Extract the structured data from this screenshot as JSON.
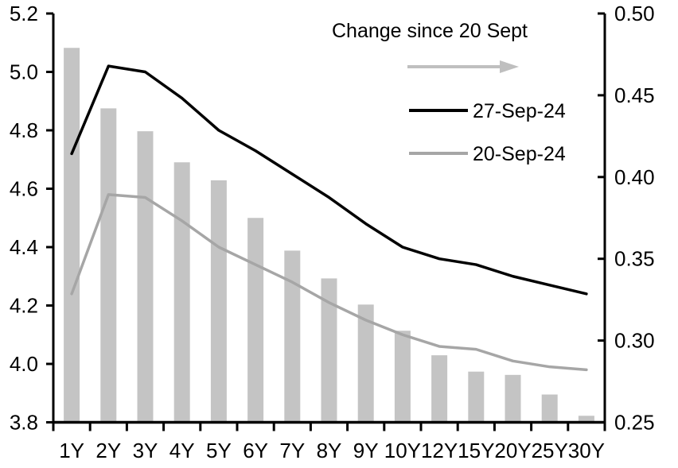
{
  "chart_data": {
    "type": "combo",
    "categories": [
      "1Y",
      "2Y",
      "3Y",
      "4Y",
      "5Y",
      "6Y",
      "7Y",
      "8Y",
      "9Y",
      "10Y",
      "12Y",
      "15Y",
      "20Y",
      "25Y",
      "30Y"
    ],
    "series": [
      {
        "name": "Change since 20 Sept",
        "type": "bar",
        "axis": "right",
        "color": "#c4c4c4",
        "values": [
          0.479,
          0.442,
          0.428,
          0.409,
          0.398,
          0.375,
          0.355,
          0.338,
          0.322,
          0.306,
          0.291,
          0.281,
          0.279,
          0.267,
          0.254
        ]
      },
      {
        "name": "27-Sep-24",
        "type": "line",
        "axis": "left",
        "color": "#000000",
        "values": [
          4.72,
          5.02,
          5.0,
          4.91,
          4.8,
          4.73,
          4.65,
          4.57,
          4.48,
          4.4,
          4.36,
          4.34,
          4.3,
          4.27,
          4.24
        ]
      },
      {
        "name": "20-Sep-24",
        "type": "line",
        "axis": "left",
        "color": "#a6a6a6",
        "values": [
          4.24,
          4.58,
          4.57,
          4.49,
          4.4,
          4.34,
          4.28,
          4.21,
          4.15,
          4.1,
          4.06,
          4.05,
          4.01,
          3.99,
          3.98
        ]
      }
    ],
    "left_axis": {
      "min": 3.8,
      "max": 5.2,
      "step": 0.2,
      "labels": [
        "3.8",
        "4.0",
        "4.2",
        "4.4",
        "4.6",
        "4.8",
        "5.0",
        "5.2"
      ]
    },
    "right_axis": {
      "min": 0.25,
      "max": 0.5,
      "step": 0.05,
      "labels": [
        "0.25",
        "0.30",
        "0.35",
        "0.40",
        "0.45",
        "0.50"
      ]
    },
    "legend": {
      "title": "Change since 20 Sept",
      "arrow_color": "#bfbfbf",
      "entries": [
        "27-Sep-24",
        "20-Sep-24"
      ]
    },
    "grid": false,
    "legend_position": "top-center-inside",
    "title": "",
    "xlabel": "",
    "ylabel": ""
  }
}
